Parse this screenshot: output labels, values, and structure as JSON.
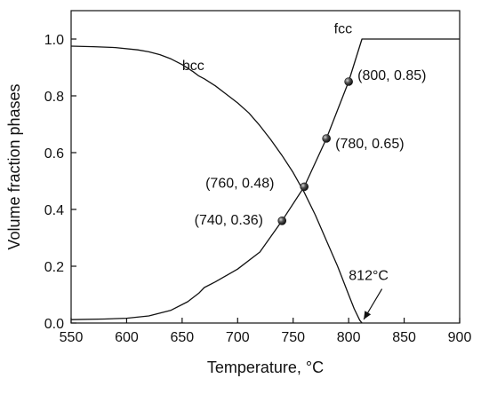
{
  "chart_data": {
    "type": "line",
    "xlabel": "Temperature, °C",
    "ylabel": "Volume fraction phases",
    "xlim": [
      550,
      900
    ],
    "ylim": [
      0.0,
      1.1
    ],
    "xticks": [
      550,
      600,
      650,
      700,
      750,
      800,
      850,
      900
    ],
    "yticks": [
      0.0,
      0.2,
      0.4,
      0.6,
      0.8,
      1.0
    ],
    "ytick_labels": [
      "0.0",
      "0.2",
      "0.4",
      "0.6",
      "0.8",
      "1.0"
    ],
    "grid": false,
    "series": [
      {
        "name": "bcc",
        "label_at": [
          660,
          0.89
        ],
        "x": [
          550,
          570,
          590,
          610,
          620,
          630,
          640,
          650,
          660,
          665,
          670,
          680,
          690,
          700,
          710,
          720,
          730,
          740,
          750,
          760,
          770,
          780,
          790,
          800,
          805,
          810,
          812
        ],
        "y": [
          0.975,
          0.973,
          0.97,
          0.962,
          0.955,
          0.945,
          0.93,
          0.91,
          0.885,
          0.87,
          0.86,
          0.835,
          0.805,
          0.775,
          0.74,
          0.695,
          0.645,
          0.59,
          0.53,
          0.46,
          0.38,
          0.29,
          0.2,
          0.1,
          0.05,
          0.01,
          0.0
        ]
      },
      {
        "name": "fcc",
        "label_at": [
          795,
          1.02
        ],
        "x": [
          550,
          580,
          600,
          620,
          640,
          655,
          665,
          670,
          680,
          700,
          720,
          740,
          760,
          780,
          800,
          812,
          900
        ],
        "y": [
          0.012,
          0.014,
          0.017,
          0.025,
          0.045,
          0.075,
          0.105,
          0.125,
          0.145,
          0.19,
          0.25,
          0.36,
          0.48,
          0.65,
          0.85,
          1.0,
          1.0
        ]
      }
    ],
    "points": [
      {
        "x": 740,
        "y": 0.36,
        "label": "(740, 0.36)",
        "label_at": [
          723,
          0.365
        ]
      },
      {
        "x": 760,
        "y": 0.48,
        "label": "(760, 0.48)",
        "label_at": [
          733,
          0.495
        ]
      },
      {
        "x": 780,
        "y": 0.65,
        "label": "(780, 0.65)",
        "label_at": [
          788,
          0.635
        ]
      },
      {
        "x": 800,
        "y": 0.85,
        "label": "(800, 0.85)",
        "label_at": [
          808,
          0.875
        ]
      }
    ],
    "annotation": {
      "text": "812°C",
      "target": [
        812,
        0.0
      ],
      "label_at": [
        818,
        0.17
      ],
      "arrow_from": [
        830,
        0.12
      ]
    }
  }
}
